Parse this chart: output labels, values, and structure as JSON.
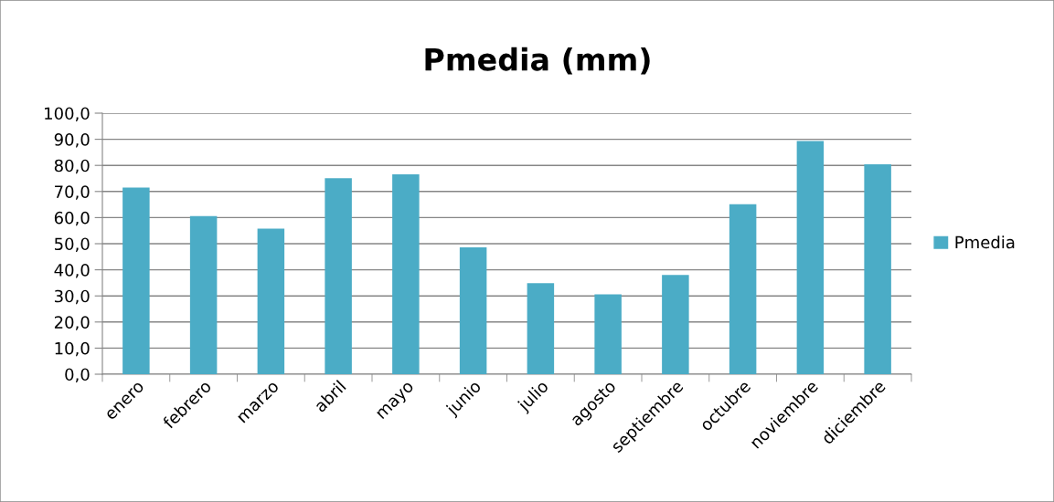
{
  "chart_data": {
    "type": "bar",
    "title": "Pmedia (mm)",
    "categories": [
      "enero",
      "febrero",
      "marzo",
      "abril",
      "mayo",
      "junio",
      "julio",
      "agosto",
      "septiembre",
      "octubre",
      "noviembre",
      "diciembre"
    ],
    "series": [
      {
        "name": "Pmedia",
        "color": "#4bacc6",
        "values": [
          71.5,
          60.6,
          55.8,
          75.1,
          76.6,
          48.6,
          34.9,
          30.6,
          38.0,
          65.1,
          89.3,
          80.4
        ]
      }
    ],
    "ylim": [
      0,
      100
    ],
    "yticks": [
      {
        "value": 0,
        "label": "0,0"
      },
      {
        "value": 10,
        "label": "10,0"
      },
      {
        "value": 20,
        "label": "20,0"
      },
      {
        "value": 30,
        "label": "30,0"
      },
      {
        "value": 40,
        "label": "40,0"
      },
      {
        "value": 50,
        "label": "50,0"
      },
      {
        "value": 60,
        "label": "60,0"
      },
      {
        "value": 70,
        "label": "70,0"
      },
      {
        "value": 80,
        "label": "80,0"
      },
      {
        "value": 90,
        "label": "90,0"
      },
      {
        "value": 100,
        "label": "100,0"
      }
    ],
    "grid": "y",
    "legend": "right"
  }
}
